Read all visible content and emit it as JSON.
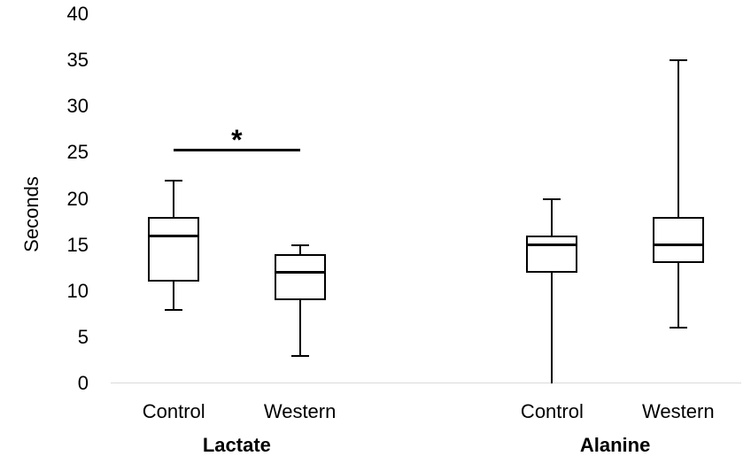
{
  "chart_data": {
    "type": "boxplot",
    "title": "",
    "ylabel": "Seconds",
    "xlabel": "",
    "ylim": [
      0,
      40
    ],
    "yticks": [
      0,
      5,
      10,
      15,
      20,
      25,
      30,
      35,
      40
    ],
    "grid": false,
    "legend": "none",
    "groups": [
      {
        "label": "Lactate",
        "categories": [
          "Control",
          "Western"
        ]
      },
      {
        "label": "Alanine",
        "categories": [
          "Control",
          "Western"
        ]
      }
    ],
    "boxes": [
      {
        "group": "Lactate",
        "category": "Control",
        "min": 8,
        "q1": 11,
        "median": 16,
        "q3": 18,
        "max": 22,
        "cap_top": true,
        "cap_bottom": true
      },
      {
        "group": "Lactate",
        "category": "Western",
        "min": 3,
        "q1": 9,
        "median": 12,
        "q3": 14,
        "max": 15,
        "cap_top": true,
        "cap_bottom": true
      },
      {
        "group": "Alanine",
        "category": "Control",
        "min": 0,
        "q1": 12,
        "median": 15,
        "q3": 16,
        "max": 20,
        "cap_top": true,
        "cap_bottom": false
      },
      {
        "group": "Alanine",
        "category": "Western",
        "min": 6,
        "q1": 13,
        "median": 15,
        "q3": 18,
        "max": 35,
        "cap_top": true,
        "cap_bottom": true
      }
    ],
    "significance": {
      "between": [
        "Lactate Control",
        "Lactate Western"
      ],
      "y": 25.3,
      "label": "*"
    },
    "layout": {
      "centers_pct": [
        10,
        30,
        70,
        90
      ],
      "axis_line_color": "#d9d9d9",
      "box_color": "#000000",
      "fill_color": "#ffffff"
    }
  }
}
